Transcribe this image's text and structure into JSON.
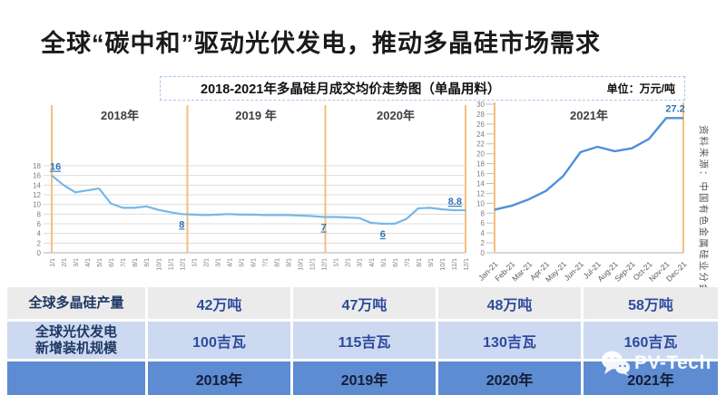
{
  "slide": {
    "title": "全球“碳中和”驱动光伏发电，推动多晶硅市场需求"
  },
  "chart": {
    "title": "2018-2021年多晶硅月成交均价走势图（单晶用料）",
    "unit_label": "单位：万元/吨",
    "source_note": "资料来源：中国有色金属硅业分会"
  },
  "colors": {
    "line_left": "#76b7e8",
    "line_right": "#4e90d8",
    "separator_orange": "#f5be7e",
    "grid": "#dcdcdc",
    "axis": "#bfbfbf",
    "tick_text": "#7f7f7f",
    "year_text": "#3f3f3f",
    "data_label_blue": "#2e74b5",
    "table_row1_bg": "#ebebeb",
    "table_row2_bg": "#ccd9f1",
    "table_row3_bg": "#5d8cd2"
  },
  "chart_data": {
    "type": "line",
    "title": "2018-2021年多晶硅月成交均价走势图（单晶用料）",
    "ylabel": "万元/吨",
    "grid": true,
    "panels": [
      {
        "name": "2018-2020",
        "year_labels": [
          "2018年",
          "2019 年",
          "2020年"
        ],
        "ylim": [
          0,
          18
        ],
        "ytick_step": 2,
        "x": [
          "1/1",
          "2/1",
          "3/1",
          "4/1",
          "5/1",
          "6/1",
          "7/1",
          "8/1",
          "9/1",
          "10/1",
          "11/1",
          "12/1",
          "1/1",
          "2/1",
          "3/1",
          "4/1",
          "5/1",
          "6/1",
          "7/1",
          "8/1",
          "9/1",
          "10/1",
          "11/1",
          "12/1",
          "1/1",
          "2/1",
          "3/1",
          "4/1",
          "5/1",
          "6/1",
          "7/1",
          "8/1",
          "9/1",
          "10/1",
          "11/1",
          "12/1"
        ],
        "values": [
          16,
          14.0,
          12.5,
          12.9,
          13.3,
          10.2,
          9.3,
          9.3,
          9.6,
          8.9,
          8.4,
          8.0,
          7.9,
          7.8,
          7.9,
          8.0,
          7.9,
          7.9,
          7.8,
          7.8,
          7.8,
          7.7,
          7.6,
          7.4,
          7.4,
          7.3,
          7.2,
          6.2,
          6.0,
          6.0,
          7.0,
          9.2,
          9.3,
          9.0,
          8.8,
          8.8
        ],
        "annotations": [
          {
            "index": 0,
            "label": "16",
            "placement": "above-start"
          },
          {
            "index": 11,
            "label": "8",
            "placement": "below"
          },
          {
            "index": 23,
            "label": "7",
            "placement": "below"
          },
          {
            "index": 28,
            "label": "6",
            "placement": "below"
          },
          {
            "index": 35,
            "label": "8.8",
            "placement": "left"
          }
        ]
      },
      {
        "name": "2021",
        "year_labels": [
          "2021年"
        ],
        "ylim": [
          0,
          30
        ],
        "ytick_step": 2,
        "x": [
          "Jan-21",
          "Feb-21",
          "Mar-21",
          "Apr-21",
          "May-21",
          "Jun-21",
          "Jul-21",
          "Aug-21",
          "Sep-21",
          "Oct-21",
          "Nov-21",
          "Dec-21"
        ],
        "values": [
          8.7,
          9.5,
          10.8,
          12.5,
          15.5,
          20.3,
          21.4,
          20.5,
          21.1,
          23.0,
          27.2,
          27.2
        ],
        "annotations": [
          {
            "index": 10,
            "label": "27.2",
            "placement": "above"
          }
        ]
      }
    ]
  },
  "table": {
    "rows": [
      {
        "label_lines": [
          "全球多晶硅产量"
        ],
        "values": [
          "42万吨",
          "47万吨",
          "48万吨",
          "58万吨"
        ]
      },
      {
        "label_lines": [
          "全球光伏发电",
          "新增装机规模"
        ],
        "values": [
          "100吉瓦",
          "115吉瓦",
          "130吉瓦",
          "160吉瓦"
        ]
      },
      {
        "label_lines": [],
        "values": [
          "2018年",
          "2019年",
          "2020年",
          "2021年"
        ]
      }
    ]
  },
  "logo": {
    "text": "PV-Tech"
  }
}
